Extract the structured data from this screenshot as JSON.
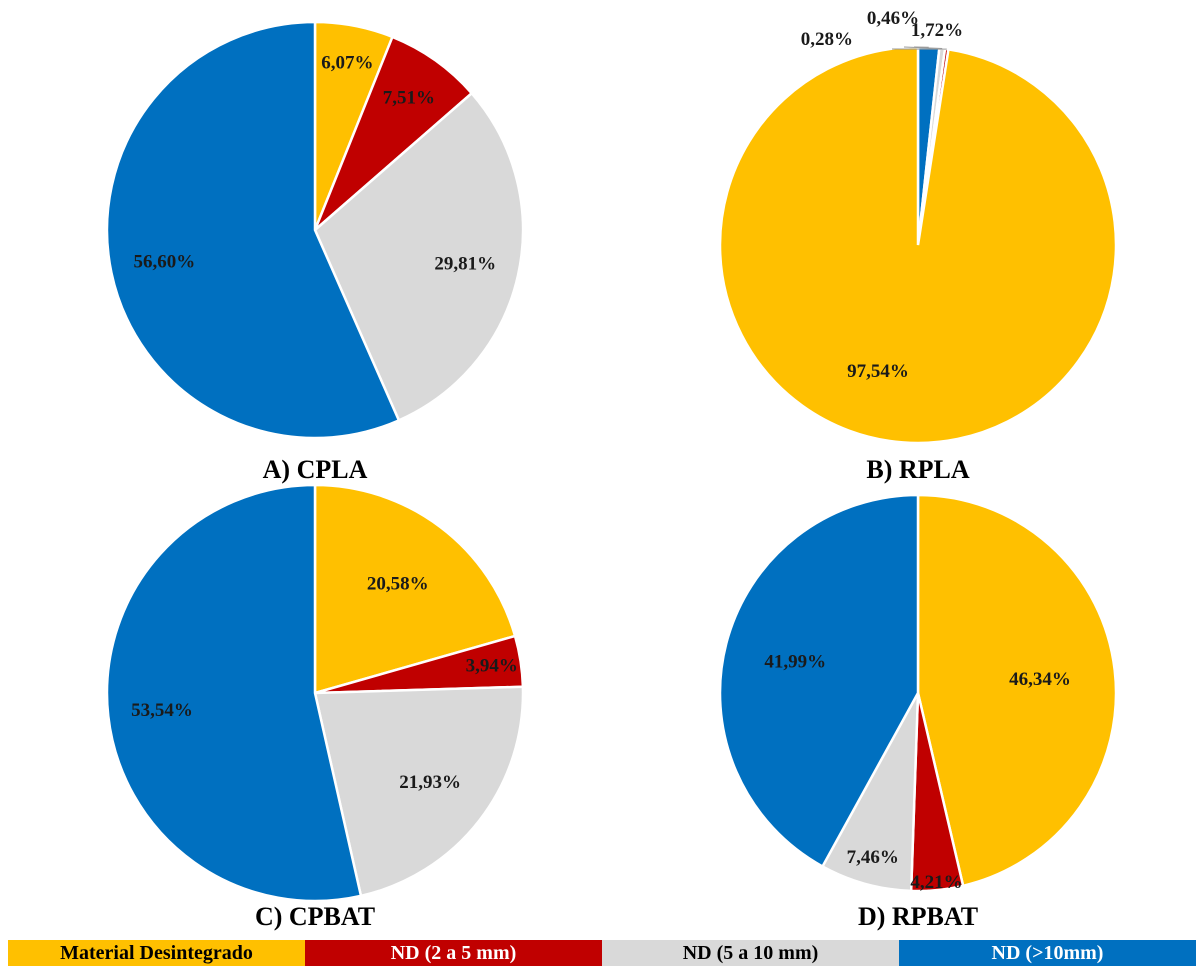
{
  "colors": {
    "material_desintegrado": "#FFC000",
    "nd_2_5": "#C00000",
    "nd_5_10": "#D9D9D9",
    "nd_gt_10": "#0070C0"
  },
  "legend": [
    {
      "label": "Material Desintegrado",
      "color": "#FFC000",
      "text_color": "#000000"
    },
    {
      "label": "ND (2 a 5 mm)",
      "color": "#C00000",
      "text_color": "#ffffff"
    },
    {
      "label": "ND (5 a 10 mm)",
      "color": "#D9D9D9",
      "text_color": "#000000"
    },
    {
      "label": "ND (>10mm)",
      "color": "#0070C0",
      "text_color": "#ffffff"
    }
  ],
  "chart_data": [
    {
      "type": "pie",
      "title": "A) CPLA",
      "categories": [
        "Material Desintegrado",
        "ND (2 a 5 mm)",
        "ND (5 a 10 mm)",
        "ND (>10mm)"
      ],
      "values": [
        6.07,
        7.51,
        29.81,
        56.6
      ],
      "labels": [
        "6,07%",
        "7,51%",
        "29,81%",
        "56,60%"
      ]
    },
    {
      "type": "pie",
      "title": "B) RPLA",
      "categories": [
        "Material Desintegrado",
        "ND (2 a 5 mm)",
        "ND (5 a 10 mm)",
        "ND (>10mm)"
      ],
      "values": [
        97.54,
        0.28,
        0.46,
        1.72
      ],
      "labels": [
        "97,54%",
        "0,28%",
        "0,46%",
        "1,72%"
      ]
    },
    {
      "type": "pie",
      "title": "C) CPBAT",
      "categories": [
        "Material Desintegrado",
        "ND (2 a 5 mm)",
        "ND (5 a 10 mm)",
        "ND (>10mm)"
      ],
      "values": [
        20.58,
        3.94,
        21.93,
        53.54
      ],
      "labels": [
        "20,58%",
        "3,94%",
        "21,93%",
        "53,54%"
      ]
    },
    {
      "type": "pie",
      "title": "D) RPBAT",
      "categories": [
        "Material Desintegrado",
        "ND (2 a 5 mm)",
        "ND (5 a 10 mm)",
        "ND (>10mm)"
      ],
      "values": [
        46.34,
        4.21,
        7.46,
        41.99
      ],
      "labels": [
        "46,34%",
        "4,21%",
        "7,46%",
        "41,99%"
      ]
    }
  ]
}
